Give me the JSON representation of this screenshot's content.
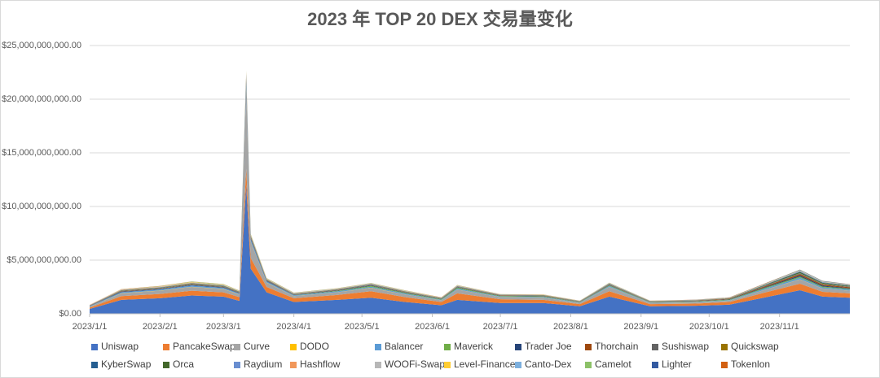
{
  "chart_data": {
    "type": "stacked-area",
    "title": "2023 年 TOP 20 DEX 交易量变化",
    "x": [
      "2023/1/1",
      "2023/1/15",
      "2023/2/1",
      "2023/2/15",
      "2023/3/1",
      "2023/3/8",
      "2023/3/11",
      "2023/3/13",
      "2023/3/20",
      "2023/4/1",
      "2023/4/20",
      "2023/5/5",
      "2023/5/20",
      "2023/6/5",
      "2023/6/12",
      "2023/7/1",
      "2023/7/20",
      "2023/8/5",
      "2023/8/18",
      "2023/9/5",
      "2023/9/25",
      "2023/10/10",
      "2023/10/25",
      "2023/11/10",
      "2023/11/20",
      "2023/12/2"
    ],
    "xlim": [
      "2023/1/1",
      "2023/12/2"
    ],
    "xticks": [
      "2023/1/1",
      "2023/2/1",
      "2023/3/1",
      "2023/4/1",
      "2023/5/1",
      "2023/6/1",
      "2023/7/1",
      "2023/8/1",
      "2023/9/1",
      "2023/10/1",
      "2023/11/1"
    ],
    "ylim": [
      0,
      25000000000
    ],
    "yticks": [
      {
        "value": 0,
        "label": "$0.00"
      },
      {
        "value": 5000000000,
        "label": "$5,000,000,000.00"
      },
      {
        "value": 10000000000,
        "label": "$10,000,000,000.00"
      },
      {
        "value": 15000000000,
        "label": "$15,000,000,000.00"
      },
      {
        "value": 20000000000,
        "label": "$20,000,000,000.00"
      },
      {
        "value": 25000000000,
        "label": "$25,000,000,000.00"
      }
    ],
    "grid": true,
    "legend": "bottom",
    "series": [
      {
        "name": "Uniswap",
        "color": "#4472C4",
        "values": [
          450000000.0,
          1300000000.0,
          1450000000.0,
          1700000000.0,
          1600000000.0,
          1200000000.0,
          12000000000.0,
          4200000000.0,
          2000000000.0,
          1100000000.0,
          1300000000.0,
          1500000000.0,
          1100000000.0,
          800000000.0,
          1300000000.0,
          1000000000.0,
          1000000000.0,
          700000000.0,
          1600000000.0,
          700000000.0,
          750000000.0,
          850000000.0,
          1500000000.0,
          2200000000.0,
          1600000000.0,
          1500000000.0
        ]
      },
      {
        "name": "PancakeSwap",
        "color": "#ED7D31",
        "values": [
          120000000.0,
          350000000.0,
          400000000.0,
          450000000.0,
          400000000.0,
          350000000.0,
          1500000000.0,
          1000000000.0,
          500000000.0,
          350000000.0,
          450000000.0,
          600000000.0,
          450000000.0,
          300000000.0,
          600000000.0,
          350000000.0,
          300000000.0,
          200000000.0,
          500000000.0,
          200000000.0,
          200000000.0,
          250000000.0,
          450000000.0,
          600000000.0,
          450000000.0,
          400000000.0
        ]
      },
      {
        "name": "Curve",
        "color": "#A5A5A5",
        "values": [
          80000000.0,
          250000000.0,
          300000000.0,
          350000000.0,
          300000000.0,
          250000000.0,
          7500000000.0,
          1500000000.0,
          400000000.0,
          200000000.0,
          250000000.0,
          300000000.0,
          250000000.0,
          150000000.0,
          350000000.0,
          200000000.0,
          200000000.0,
          100000000.0,
          400000000.0,
          100000000.0,
          120000000.0,
          120000000.0,
          250000000.0,
          400000000.0,
          300000000.0,
          250000000.0
        ]
      },
      {
        "name": "DODO",
        "color": "#FFC000",
        "values": [
          10000000.0,
          20000000.0,
          20000000.0,
          20000000.0,
          20000000.0,
          20000000.0,
          50000000.0,
          30000000.0,
          20000000.0,
          10000000.0,
          10000000.0,
          20000000.0,
          10000000.0,
          10000000.0,
          10000000.0,
          10000000.0,
          10000000.0,
          10000000.0,
          10000000.0,
          10000000.0,
          10000000.0,
          10000000.0,
          10000000.0,
          20000000.0,
          10000000.0,
          10000000.0
        ]
      },
      {
        "name": "Balancer",
        "color": "#5B9BD5",
        "values": [
          40000000.0,
          100000000.0,
          100000000.0,
          120000000.0,
          100000000.0,
          80000000.0,
          500000000.0,
          200000000.0,
          100000000.0,
          60000000.0,
          80000000.0,
          100000000.0,
          80000000.0,
          50000000.0,
          100000000.0,
          50000000.0,
          60000000.0,
          40000000.0,
          80000000.0,
          40000000.0,
          40000000.0,
          50000000.0,
          100000000.0,
          150000000.0,
          100000000.0,
          100000000.0
        ]
      },
      {
        "name": "Maverick",
        "color": "#70AD47",
        "values": [
          0,
          0,
          0,
          0,
          0,
          0,
          0,
          0,
          0,
          20000000.0,
          50000000.0,
          80000000.0,
          60000000.0,
          50000000.0,
          80000000.0,
          50000000.0,
          50000000.0,
          30000000.0,
          60000000.0,
          30000000.0,
          40000000.0,
          50000000.0,
          80000000.0,
          100000000.0,
          80000000.0,
          70000000.0
        ]
      },
      {
        "name": "Trader Joe",
        "color": "#264478",
        "values": [
          20000000.0,
          40000000.0,
          40000000.0,
          50000000.0,
          50000000.0,
          40000000.0,
          200000000.0,
          80000000.0,
          50000000.0,
          30000000.0,
          40000000.0,
          50000000.0,
          40000000.0,
          30000000.0,
          40000000.0,
          30000000.0,
          30000000.0,
          20000000.0,
          40000000.0,
          20000000.0,
          20000000.0,
          30000000.0,
          50000000.0,
          100000000.0,
          80000000.0,
          60000000.0
        ]
      },
      {
        "name": "Thorchain",
        "color": "#9E480E",
        "values": [
          10000000.0,
          20000000.0,
          20000000.0,
          20000000.0,
          20000000.0,
          20000000.0,
          50000000.0,
          30000000.0,
          20000000.0,
          20000000.0,
          20000000.0,
          20000000.0,
          20000000.0,
          20000000.0,
          20000000.0,
          20000000.0,
          20000000.0,
          20000000.0,
          30000000.0,
          20000000.0,
          30000000.0,
          40000000.0,
          80000000.0,
          120000000.0,
          100000000.0,
          80000000.0
        ]
      },
      {
        "name": "Sushiswap",
        "color": "#636363",
        "values": [
          30000000.0,
          50000000.0,
          50000000.0,
          60000000.0,
          50000000.0,
          40000000.0,
          300000000.0,
          100000000.0,
          50000000.0,
          30000000.0,
          30000000.0,
          40000000.0,
          30000000.0,
          20000000.0,
          30000000.0,
          20000000.0,
          20000000.0,
          20000000.0,
          30000000.0,
          20000000.0,
          20000000.0,
          20000000.0,
          30000000.0,
          50000000.0,
          40000000.0,
          40000000.0
        ]
      },
      {
        "name": "Quickswap",
        "color": "#997300",
        "values": [
          10000000.0,
          30000000.0,
          30000000.0,
          30000000.0,
          30000000.0,
          20000000.0,
          100000000.0,
          40000000.0,
          20000000.0,
          20000000.0,
          20000000.0,
          20000000.0,
          20000000.0,
          10000000.0,
          20000000.0,
          10000000.0,
          20000000.0,
          10000000.0,
          20000000.0,
          10000000.0,
          10000000.0,
          20000000.0,
          20000000.0,
          30000000.0,
          30000000.0,
          20000000.0
        ]
      },
      {
        "name": "KyberSwap",
        "color": "#255E91",
        "values": [
          10000000.0,
          20000000.0,
          20000000.0,
          20000000.0,
          20000000.0,
          20000000.0,
          100000000.0,
          40000000.0,
          20000000.0,
          20000000.0,
          20000000.0,
          30000000.0,
          20000000.0,
          20000000.0,
          20000000.0,
          20000000.0,
          20000000.0,
          10000000.0,
          30000000.0,
          10000000.0,
          10000000.0,
          10000000.0,
          20000000.0,
          30000000.0,
          20000000.0,
          20000000.0
        ]
      },
      {
        "name": "Orca",
        "color": "#43682B",
        "values": [
          10000000.0,
          20000000.0,
          20000000.0,
          30000000.0,
          30000000.0,
          20000000.0,
          50000000.0,
          30000000.0,
          20000000.0,
          10000000.0,
          10000000.0,
          10000000.0,
          10000000.0,
          10000000.0,
          10000000.0,
          10000000.0,
          10000000.0,
          10000000.0,
          10000000.0,
          10000000.0,
          10000000.0,
          20000000.0,
          50000000.0,
          100000000.0,
          80000000.0,
          60000000.0
        ]
      },
      {
        "name": "Raydium",
        "color": "#698ED0",
        "values": [
          10000000.0,
          20000000.0,
          20000000.0,
          20000000.0,
          20000000.0,
          10000000.0,
          40000000.0,
          20000000.0,
          10000000.0,
          10000000.0,
          10000000.0,
          10000000.0,
          10000000.0,
          10000000.0,
          10000000.0,
          10000000.0,
          10000000.0,
          10000000.0,
          10000000.0,
          10000000.0,
          10000000.0,
          10000000.0,
          40000000.0,
          80000000.0,
          60000000.0,
          50000000.0
        ]
      },
      {
        "name": "Hashflow",
        "color": "#F1975A",
        "values": [
          10000000.0,
          30000000.0,
          30000000.0,
          30000000.0,
          20000000.0,
          20000000.0,
          100000000.0,
          50000000.0,
          30000000.0,
          20000000.0,
          20000000.0,
          20000000.0,
          20000000.0,
          10000000.0,
          20000000.0,
          10000000.0,
          10000000.0,
          10000000.0,
          10000000.0,
          10000000.0,
          10000000.0,
          10000000.0,
          20000000.0,
          20000000.0,
          20000000.0,
          20000000.0
        ]
      },
      {
        "name": "WOOFi-Swap",
        "color": "#B7B7B7",
        "values": [
          10000000.0,
          20000000.0,
          30000000.0,
          30000000.0,
          30000000.0,
          20000000.0,
          50000000.0,
          30000000.0,
          20000000.0,
          20000000.0,
          20000000.0,
          20000000.0,
          20000000.0,
          10000000.0,
          20000000.0,
          10000000.0,
          10000000.0,
          10000000.0,
          20000000.0,
          10000000.0,
          10000000.0,
          10000000.0,
          20000000.0,
          30000000.0,
          20000000.0,
          20000000.0
        ]
      },
      {
        "name": "Level-Finance",
        "color": "#FFCD33",
        "values": [
          0,
          10000000.0,
          20000000.0,
          30000000.0,
          30000000.0,
          20000000.0,
          40000000.0,
          30000000.0,
          20000000.0,
          10000000.0,
          10000000.0,
          10000000.0,
          10000000.0,
          10000000.0,
          10000000.0,
          10000000.0,
          10000000.0,
          0,
          10000000.0,
          0,
          0,
          0,
          10000000.0,
          10000000.0,
          10000000.0,
          10000000.0
        ]
      },
      {
        "name": "Canto-Dex",
        "color": "#7CAFDD",
        "values": [
          0,
          0,
          10000000.0,
          10000000.0,
          10000000.0,
          10000000.0,
          10000000.0,
          10000000.0,
          10000000.0,
          10000000.0,
          10000000.0,
          10000000.0,
          10000000.0,
          0,
          10000000.0,
          0,
          0,
          0,
          10000000.0,
          0,
          0,
          0,
          0,
          10000000.0,
          10000000.0,
          0
        ]
      },
      {
        "name": "Camelot",
        "color": "#8CC168",
        "values": [
          0,
          10000000.0,
          20000000.0,
          30000000.0,
          30000000.0,
          20000000.0,
          60000000.0,
          30000000.0,
          20000000.0,
          20000000.0,
          20000000.0,
          20000000.0,
          20000000.0,
          10000000.0,
          20000000.0,
          10000000.0,
          10000000.0,
          10000000.0,
          20000000.0,
          10000000.0,
          10000000.0,
          10000000.0,
          20000000.0,
          30000000.0,
          20000000.0,
          20000000.0
        ]
      },
      {
        "name": "Lighter",
        "color": "#335AA1",
        "values": [
          0,
          0,
          0,
          0,
          0,
          0,
          0,
          0,
          0,
          0,
          0,
          0,
          0,
          0,
          0,
          0,
          0,
          0,
          0,
          0,
          10000000.0,
          10000000.0,
          20000000.0,
          30000000.0,
          30000000.0,
          20000000.0
        ]
      },
      {
        "name": "Tokenlon",
        "color": "#D26012",
        "values": [
          10000000.0,
          10000000.0,
          10000000.0,
          10000000.0,
          10000000.0,
          10000000.0,
          20000000.0,
          10000000.0,
          10000000.0,
          10000000.0,
          10000000.0,
          10000000.0,
          10000000.0,
          10000000.0,
          10000000.0,
          10000000.0,
          10000000.0,
          10000000.0,
          10000000.0,
          10000000.0,
          10000000.0,
          10000000.0,
          10000000.0,
          10000000.0,
          10000000.0,
          10000000.0
        ]
      }
    ]
  }
}
